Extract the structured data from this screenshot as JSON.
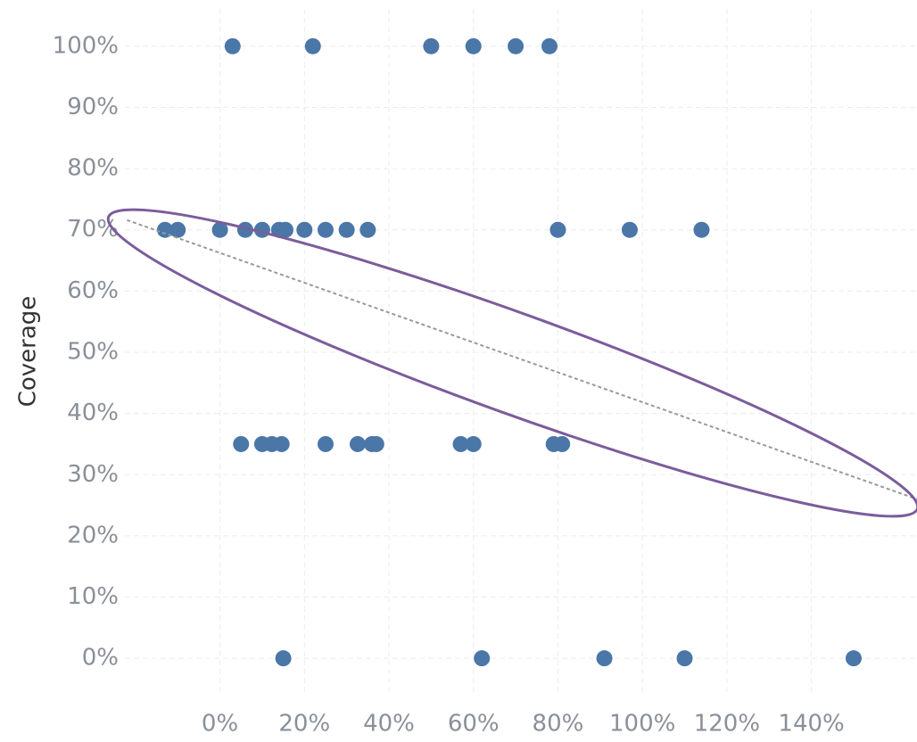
{
  "chart_data": {
    "type": "scatter",
    "y_label": "Coverage",
    "color": "#4a76a8",
    "x": [
      3,
      22,
      50,
      60,
      70,
      78,
      -13,
      -10,
      0,
      6,
      10,
      14,
      15.5,
      20,
      25,
      30,
      35,
      80,
      97,
      114,
      5,
      10,
      12.3,
      14.6,
      25,
      32.6,
      36,
      37,
      57,
      60,
      79,
      81,
      15,
      62,
      91,
      110,
      150
    ],
    "y": [
      100,
      100,
      100,
      100,
      100,
      100,
      70,
      70,
      70,
      70,
      70,
      70,
      70,
      70,
      70,
      70,
      70,
      70,
      70,
      70,
      35,
      35,
      35,
      35,
      35,
      35,
      35,
      35,
      35,
      35,
      35,
      35,
      0,
      0,
      0,
      0,
      0
    ],
    "trend": {
      "x": [
        -22,
        165
      ],
      "y": [
        71.6,
        26
      ]
    },
    "xlim": [
      -22.5,
      165
    ],
    "ylim": [
      -6.1,
      106.1
    ],
    "xticks": [
      {
        "value": 0,
        "label": "0%"
      },
      {
        "value": 20,
        "label": "20%"
      },
      {
        "value": 40,
        "label": "40%"
      },
      {
        "value": 60,
        "label": "60%"
      },
      {
        "value": 80,
        "label": "80%"
      },
      {
        "value": 100,
        "label": "100%"
      },
      {
        "value": 120,
        "label": "120%"
      },
      {
        "value": 140,
        "label": "140%"
      }
    ],
    "yticks": [
      {
        "value": 0,
        "label": "0%"
      },
      {
        "value": 10,
        "label": "10%"
      },
      {
        "value": 20,
        "label": "20%"
      },
      {
        "value": 30,
        "label": "30%"
      },
      {
        "value": 40,
        "label": "40%"
      },
      {
        "value": 50,
        "label": "50%"
      },
      {
        "value": 60,
        "label": "60%"
      },
      {
        "value": 70,
        "label": "70%"
      },
      {
        "value": 80,
        "label": "80%"
      },
      {
        "value": 90,
        "label": "90%"
      },
      {
        "value": 100,
        "label": "100%"
      }
    ],
    "grid": true
  }
}
